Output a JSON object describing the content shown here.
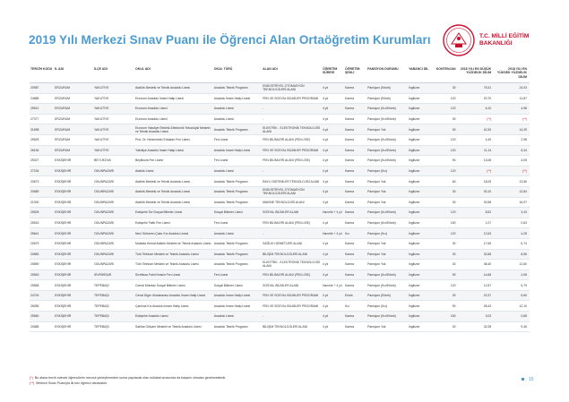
{
  "title": "2019 Yılı Merkezi Sınav Puanı ile Öğrenci Alan Ortaöğretim Kurumları",
  "logo": {
    "line1": "T.C. MİLLİ EĞİTİM",
    "line2": "BAKANLIĞI",
    "color": "#c8102e"
  },
  "accent": "#4a9bd2",
  "table": {
    "headers": [
      "TERCİH KODU",
      "İL ADI",
      "İLÇE ADI",
      "OKUL ADI",
      "OKUL TÜRÜ",
      "ALAN ADI",
      "ÖĞRETİM SÜRESİ",
      "ÖĞRETİM ŞEKLİ",
      "PANSİYON DURUMU",
      "YABANCI DİL",
      "KONTENJAN",
      "2018 YILI EN DÜŞÜK YÜZDELİK DİLİM",
      "2018 YILI EN YÜKSEK YÜZDELİK DİLİM"
    ],
    "rows": [
      [
        "20987",
        "ERZURUM",
        "YAKUTİYE",
        "Atatürk Mesleki ve Teknik Anadolu Lisesi",
        "Anadolu Teknik Programı",
        "ENDÜSTRİYEL OTOMASYON TEKNOLOJİLERİ ALANI",
        "4 yıl",
        "Karma",
        "Pansiyon (Erkek)",
        "İngilizce",
        "30",
        "78,31",
        "24,03"
      ],
      [
        "24885",
        "ERZURUM",
        "YAKUTİYE",
        "Erzurum Anadolu İmam Hatip Lisesi",
        "Anadolu İmam Hatip Lisesi",
        "FEN VE SOSYAL BİLİMLER PROGRAMI",
        "4 yıl",
        "Karma",
        "Pansiyon (Erkek)",
        "İngilizce",
        "120",
        "20,70",
        "11,87"
      ],
      [
        "25512",
        "ERZURUM",
        "YAKUTİYE",
        "Erzurum Anadolu Lisesi",
        "Anadolu Lisesi",
        "-",
        "4 yıl",
        "Karma",
        "Pansiyon (Kız/Erkek)",
        "İngilizce",
        "120",
        "6,10",
        "4,98"
      ],
      [
        "27377",
        "ERZURUM",
        "YAKUTİYE",
        "Erzurum Anadolu Lisesi",
        "Anadolu Lisesi",
        "-",
        "4 yıl",
        "Karma",
        "Pansiyon (Kız/Erkek)",
        "İngilizce",
        "30",
        "(**)",
        "(**)"
      ],
      [
        "31698",
        "ERZURUM",
        "YAKUTİYE",
        "Erzurum Yakutiye Elektrik-Elektronik Teknolojisi Mesleki ve Teknik Anadolu Lisesi",
        "Anadolu Teknik Programı",
        "ELEKTRİK - ELEKTRONİK TEKNOLOJİSİ ALANI",
        "4 yıl",
        "Karma",
        "Pansiyon Yok",
        "İngilizce",
        "30",
        "42,30",
        "14,29"
      ],
      [
        "25525",
        "ERZURUM",
        "YAKUTİYE",
        "Prof. Dr. Necmeddin Erbakan Fen Lisesi",
        "Fen Lisesi",
        "FEN BİLİMLERİ ALANI (FEN LİSE)",
        "4 yıl",
        "Karma",
        "Pansiyon (Kız/Erkek)",
        "İngilizce",
        "120",
        "4,40",
        "2,98"
      ],
      [
        "26154",
        "ERZURUM",
        "YAKUTİYE",
        "Yakutiye Anadolu İmam Hatip Lisesi",
        "Anadolu İmam Hatip Lisesi",
        "FEN VE SOSYAL BİLİMLER PROGRAMI",
        "4 yıl",
        "Karma",
        "Pansiyon (Kız/Erkek)",
        "İngilizce",
        "120",
        "11,14",
        "5,34"
      ],
      [
        "25327",
        "ESKİŞEHİR",
        "BEYLİKOVA",
        "Beylikova Fen Lisesi",
        "Fen Lisesi",
        "FEN BİLİMLERİ ALANI (FEN LİSE)",
        "4 yıl",
        "Karma",
        "Pansiyon (Kız/Erkek)",
        "İngilizce",
        "90",
        "13,08",
        "4,05"
      ],
      [
        "27234",
        "ESKİŞEHİR",
        "ODUNPAZARI",
        "Atatürk Lisesi",
        "Anadolu Lisesi",
        "-",
        "4 yıl",
        "Karma",
        "Pansiyon (Kız)",
        "İngilizce",
        "120",
        "(**)",
        "(**)"
      ],
      [
        "20673",
        "ESKİŞEHİR",
        "ODUNPAZARI",
        "Atatürk Mesleki ve Teknik Anadolu Lisesi",
        "Anadolu Teknik Programı",
        "RAYLI SİSTEMLER TEKNOLOJİSİ ALANI",
        "4 yıl",
        "Karma",
        "Pansiyon Yok",
        "İngilizce",
        "60",
        "18,09",
        "13,56"
      ],
      [
        "20689",
        "ESKİŞEHİR",
        "ODUNPAZARI",
        "Atatürk Mesleki ve Teknik Anadolu Lisesi",
        "Anadolu Teknik Programı",
        "ENDÜSTRİYEL OTOMASYON TEKNOLOJİLERİ ALANI",
        "4 yıl",
        "Karma",
        "Pansiyon Yok",
        "İngilizce",
        "30",
        "30,10",
        "12,84"
      ],
      [
        "21000",
        "ESKİŞEHİR",
        "ODUNPAZARI",
        "Atatürk Mesleki ve Teknik Anadolu Lisesi",
        "Anadolu Teknik Programı",
        "MAKİNE TEKNOLOJİSİ ALANI",
        "4 yıl",
        "Karma",
        "Pansiyon Yok",
        "İngilizce",
        "30",
        "30,58",
        "16,97"
      ],
      [
        "25525",
        "ESKİŞEHİR",
        "ODUNPAZARI",
        "Eskişehir Ezi Sosyal Bilimler Lisesi",
        "Sosyal Bilimler Lisesi",
        "SOSYAL BİLİMLER ALANI",
        "Hazırlık + 4 yıl",
        "Karma",
        "Pansiyon (Kız/Erkek)",
        "İngilizce",
        "120",
        "8,52",
        "3,43"
      ],
      [
        "25515",
        "ESKİŞEHİR",
        "ODUNPAZARI",
        "Eskişehir Fatih Fen Lisesi",
        "Fen Lisesi",
        "FEN BİLİMLERİ ALANI (FEN LİSE)",
        "4 yıl",
        "Karma",
        "Pansiyon (Kız/Erkek)",
        "İngilizce",
        "150",
        "1,07",
        "0,63"
      ],
      [
        "25641",
        "ESKİŞEHİR",
        "ODUNPAZARI",
        "Nevi Gülseren Çakır Kız Anadolu Lisesi",
        "Anadolu Lisesi",
        "-",
        "Hazırlık + 4 yıl",
        "Kız",
        "Pansiyon (Kız)",
        "İngilizce",
        "120",
        "12,63",
        "4,28"
      ],
      [
        "20679",
        "ESKİŞEHİR",
        "ODUNPAZARI",
        "Mustafa Kemal Atatürk Mesleki ve Teknik Anadolu Lisesi",
        "Anadolu Teknik Programı",
        "SAĞLIK HİZMETLERİ ALANI",
        "4 yıl",
        "Karma",
        "Pansiyon Yok",
        "İngilizce",
        "30",
        "17,65",
        "6,74"
      ],
      [
        "20883",
        "ESKİŞEHİR",
        "ODUNPAZARI",
        "Türk Telekom Mesleki ve Teknik Anadolu Lisesi",
        "Anadolu Teknik Programı",
        "BİLİŞİM TEKNOLOJİLERİ ALANI",
        "4 yıl",
        "Karma",
        "Pansiyon Yok",
        "İngilizce",
        "30",
        "32,68",
        "8,56"
      ],
      [
        "20890",
        "ESKİŞEHİR",
        "ODUNPAZARI",
        "Türk Telekom Mesleki ve Teknik Anadolu Lisesi",
        "Anadolu Teknik Programı",
        "ELEKTRİK - ELEKTRONİK TEKNOLOJİSİ ALANI",
        "4 yıl",
        "Karma",
        "Pansiyon Yok",
        "İngilizce",
        "30",
        "38,40",
        "12,60"
      ],
      [
        "25563",
        "ESKİŞEHİR",
        "SİVRİHİSAR",
        "Sivrihisar Fahri Keskin Fen Lisesi",
        "Fen Lisesi",
        "FEN BİLİMLERİ ALANI (FEN LİSE)",
        "4 yıl",
        "Karma",
        "Pansiyon (Kız/Erkek)",
        "İngilizce",
        "90",
        "14,68",
        "4,98"
      ],
      [
        "25558",
        "ESKİŞEHİR",
        "TEPEBAŞI",
        "Cemal Mümtaz Sosyal Bilimler Lisesi",
        "Sosyal Bilimler Lisesi",
        "SOSYAL BİLİMLER ALANI",
        "Hazırlık + 4 yıl",
        "Karma",
        "Pansiyon (Kız/Erkek)",
        "İngilizce",
        "120",
        "12,57",
        "5,79"
      ],
      [
        "24700",
        "ESKİŞEHİR",
        "TEPEBAŞI",
        "Cevat Ülger Uluslararası Anadolu İmam Hatip Lisesi",
        "Anadolu İmam Hatip Lisesi",
        "FEN VE SOSYAL BİLİMLER PROGRAMI",
        "4 yıl",
        "Erkek",
        "Pansiyon (Erkek)",
        "İngilizce",
        "30",
        "22,37",
        "5,60"
      ],
      [
        "26055",
        "ESKİŞEHİR",
        "TEPEBAŞI",
        "Çamlıca Kız Anadolu İmam Hatip Lisesi",
        "Anadolu İmam Hatip Lisesi",
        "FEN VE SOSYAL BİLİMLER PROGRAMI",
        "4 yıl",
        "Kız",
        "Pansiyon (Kız)",
        "İngilizce",
        "90",
        "28,43",
        "12,10"
      ],
      [
        "25560",
        "ESKİŞEHİR",
        "TEPEBAŞI",
        "Eskişehir Anadolu Lisesi",
        "Anadolu Lisesi",
        "-",
        "4 yıl",
        "Karma",
        "Pansiyon (Kız/Erkek)",
        "İngilizce",
        "150",
        "3,03",
        "0,88"
      ],
      [
        "20685",
        "ESKİŞEHİR",
        "TEPEBAŞI",
        "Sabiha Gökçen Mesleki ve Teknik Anadolu Lisesi",
        "Anadolu Teknik Programı",
        "BİLİŞİM TEKNOLOJİLERİ ALANI",
        "4 yıl",
        "Karma",
        "Pansiyon Yok",
        "İngilizce",
        "30",
        "32,28",
        "9,46"
      ]
    ]
  },
  "footnotes": [
    {
      "mark": "(*)",
      "text": "Bu alana tercih edecek öğrencilerin mevcut yerleştirmeden sonra yapılacak olan mülakat sınavında da başarılı olmaları gerekmektedir."
    },
    {
      "mark": "(**)",
      "text": "Merkezi Sınav Puanıyla ilk kez öğrenci alınacaktır."
    }
  ],
  "page_number": "15"
}
